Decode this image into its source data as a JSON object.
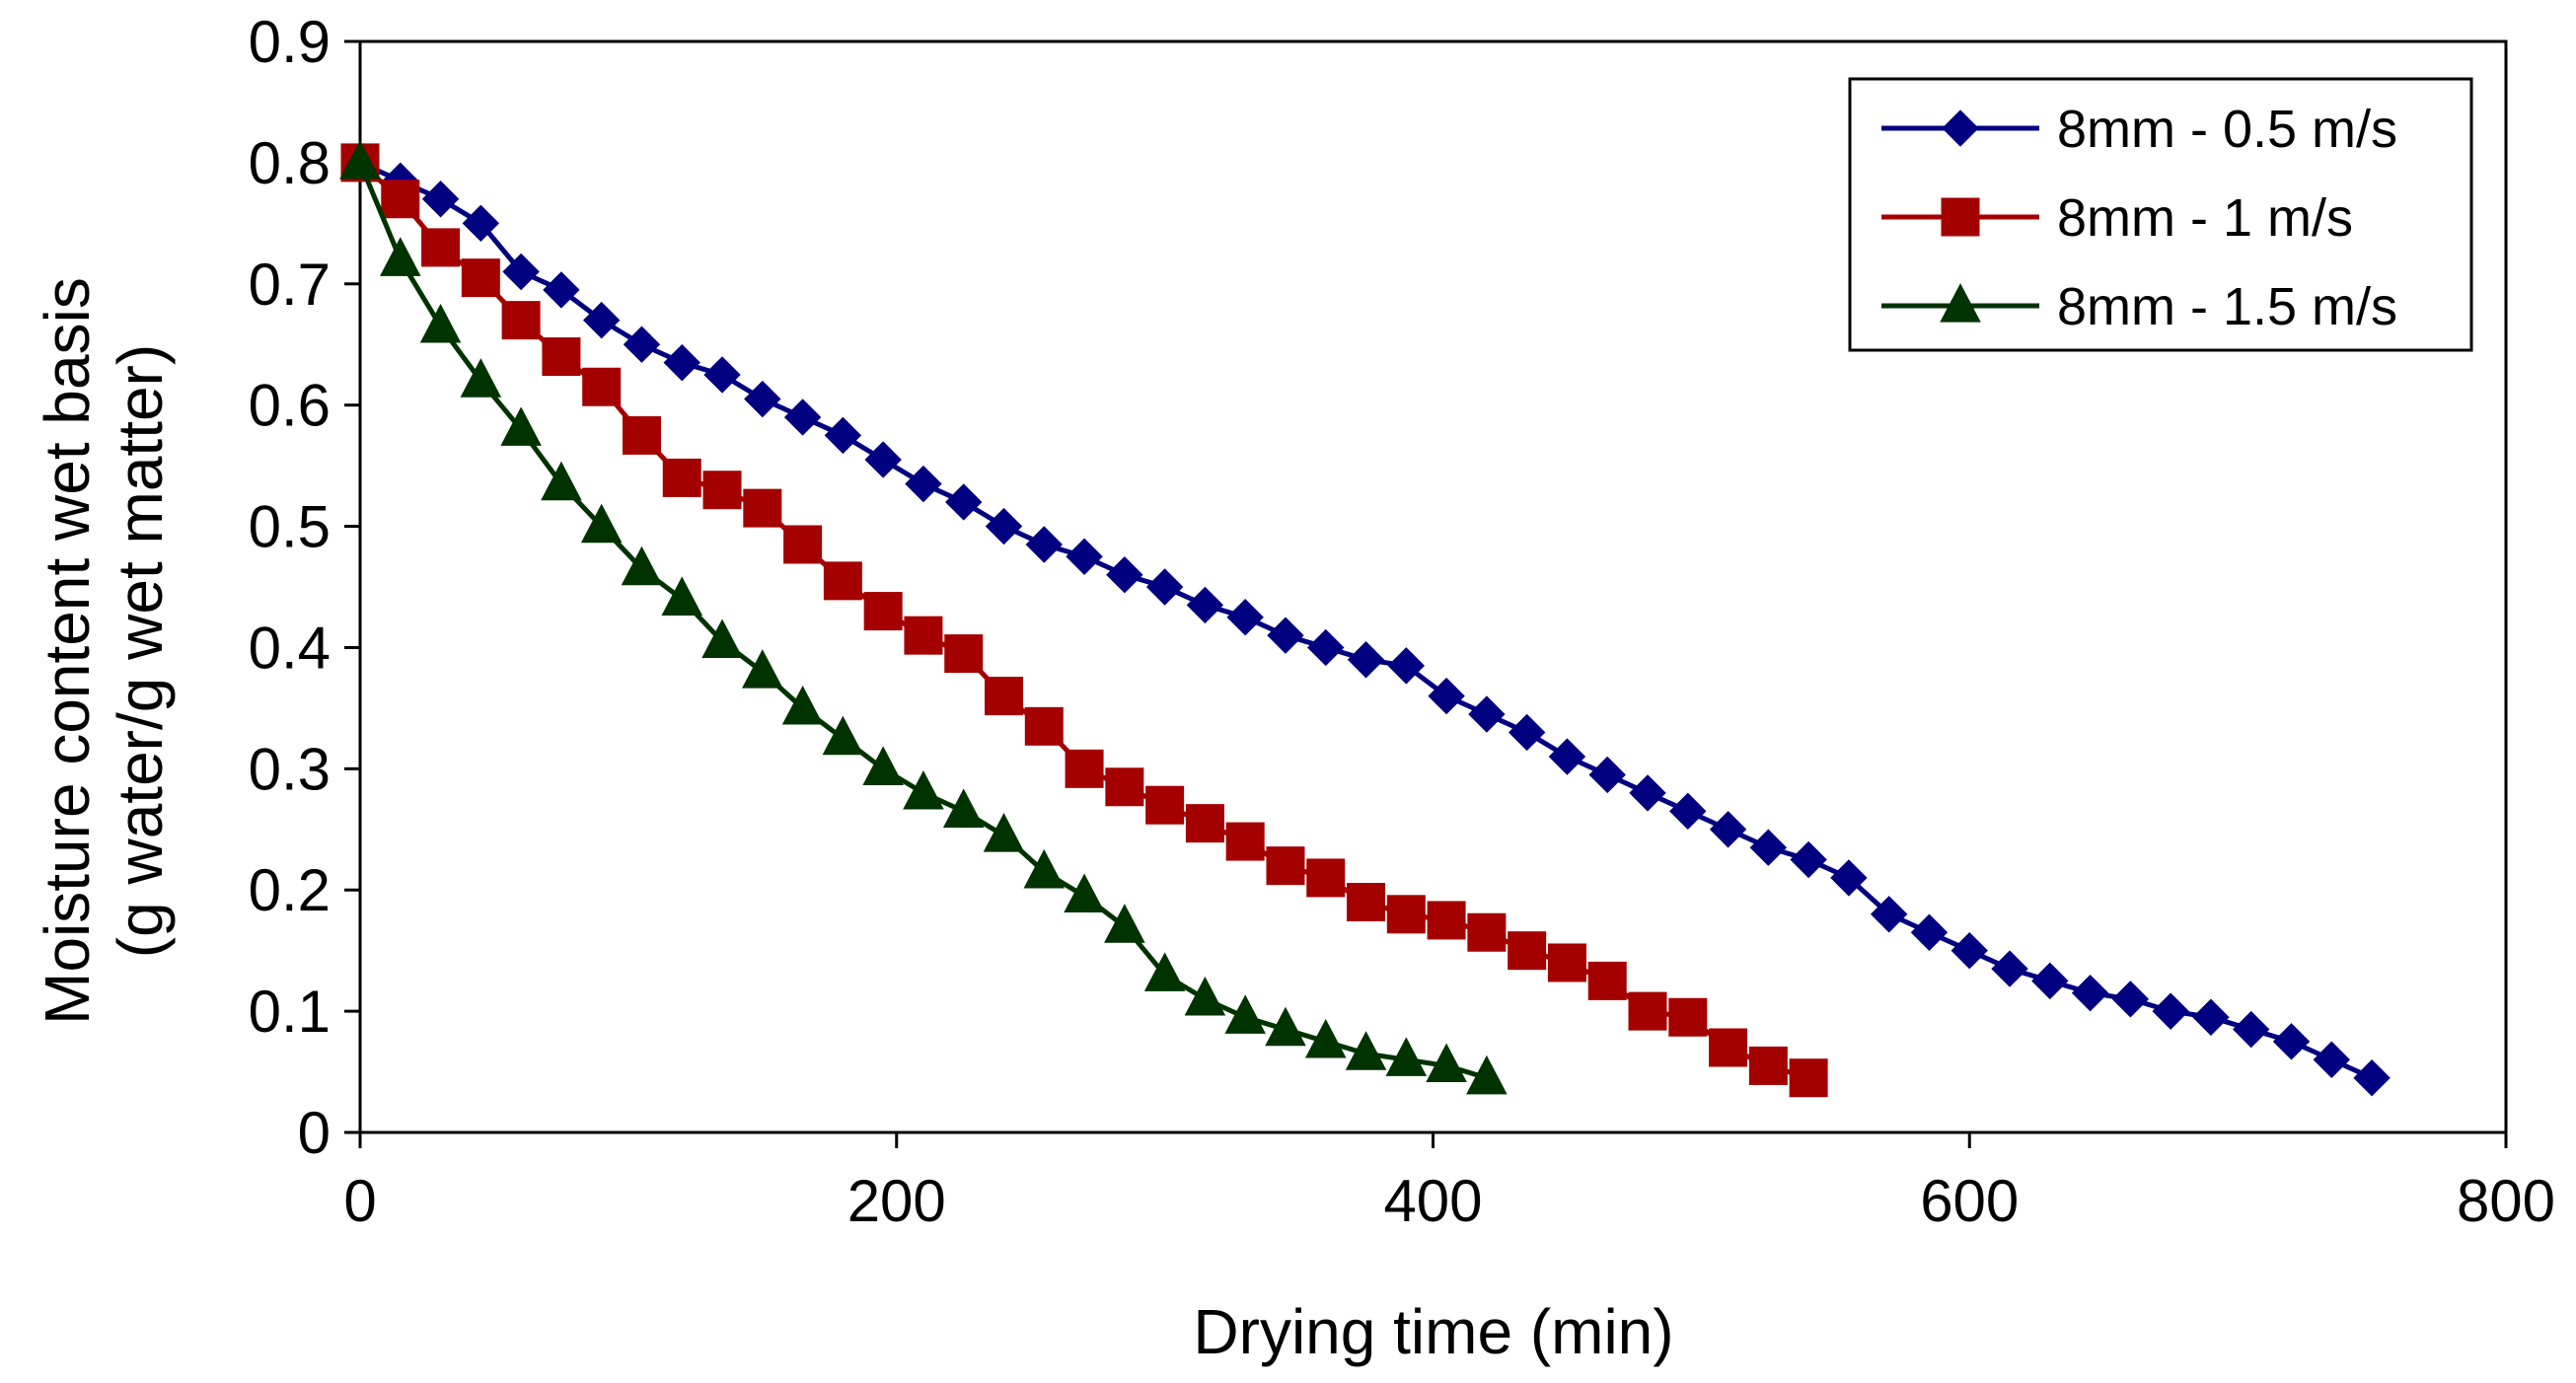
{
  "chart_data": {
    "type": "line",
    "title": "",
    "xlabel": "Drying time (min)",
    "ylabel_line1": "Moisture content wet basis",
    "ylabel_line2": "(g water/g wet matter)",
    "xlim": [
      0,
      800
    ],
    "ylim": [
      0,
      0.9
    ],
    "xticks": [
      0,
      200,
      400,
      600,
      800
    ],
    "xtick_labels": [
      "0",
      "200",
      "400",
      "600",
      "800"
    ],
    "yticks": [
      0,
      0.1,
      0.2,
      0.3,
      0.4,
      0.5,
      0.6,
      0.7,
      0.8,
      0.9
    ],
    "ytick_labels": [
      "0",
      "0.1",
      "0.2",
      "0.3",
      "0.4",
      "0.5",
      "0.6",
      "0.7",
      "0.8",
      "0.9"
    ],
    "grid": false,
    "legend_position": "top-right",
    "series": [
      {
        "name": "8mm - 0.5 m/s",
        "color": "#000080",
        "marker": "diamond",
        "x": [
          0,
          15,
          30,
          45,
          60,
          75,
          90,
          105,
          120,
          135,
          150,
          165,
          180,
          195,
          210,
          225,
          240,
          255,
          270,
          285,
          300,
          315,
          330,
          345,
          360,
          375,
          390,
          405,
          420,
          435,
          450,
          465,
          480,
          495,
          510,
          525,
          540,
          555,
          570,
          585,
          600,
          615,
          630,
          645,
          660,
          675,
          690,
          705,
          720,
          735,
          750
        ],
        "y": [
          0.8,
          0.785,
          0.77,
          0.75,
          0.71,
          0.695,
          0.67,
          0.65,
          0.635,
          0.625,
          0.605,
          0.59,
          0.575,
          0.555,
          0.535,
          0.52,
          0.5,
          0.485,
          0.475,
          0.46,
          0.45,
          0.435,
          0.425,
          0.41,
          0.4,
          0.39,
          0.385,
          0.36,
          0.345,
          0.33,
          0.31,
          0.295,
          0.28,
          0.265,
          0.25,
          0.235,
          0.225,
          0.21,
          0.18,
          0.165,
          0.15,
          0.135,
          0.125,
          0.115,
          0.11,
          0.1,
          0.095,
          0.085,
          0.075,
          0.06,
          0.045
        ]
      },
      {
        "name": "8mm - 1 m/s",
        "color": "#A50000",
        "marker": "square",
        "x": [
          0,
          15,
          30,
          45,
          60,
          75,
          90,
          105,
          120,
          135,
          150,
          165,
          180,
          195,
          210,
          225,
          240,
          255,
          270,
          285,
          300,
          315,
          330,
          345,
          360,
          375,
          390,
          405,
          420,
          435,
          450,
          465,
          480,
          495,
          510,
          525,
          540
        ],
        "y": [
          0.8,
          0.77,
          0.73,
          0.705,
          0.67,
          0.64,
          0.615,
          0.575,
          0.54,
          0.53,
          0.515,
          0.485,
          0.455,
          0.43,
          0.41,
          0.395,
          0.36,
          0.335,
          0.3,
          0.285,
          0.27,
          0.255,
          0.24,
          0.22,
          0.21,
          0.19,
          0.18,
          0.175,
          0.165,
          0.15,
          0.14,
          0.125,
          0.1,
          0.095,
          0.07,
          0.055,
          0.045
        ]
      },
      {
        "name": "8mm - 1.5 m/s",
        "color": "#003300",
        "marker": "triangle",
        "x": [
          0,
          15,
          30,
          45,
          60,
          75,
          90,
          105,
          120,
          135,
          150,
          165,
          180,
          195,
          210,
          225,
          240,
          255,
          270,
          285,
          300,
          315,
          330,
          345,
          360,
          375,
          390,
          405,
          420
        ],
        "y": [
          0.8,
          0.72,
          0.665,
          0.62,
          0.58,
          0.535,
          0.5,
          0.465,
          0.44,
          0.405,
          0.38,
          0.35,
          0.325,
          0.3,
          0.28,
          0.265,
          0.245,
          0.215,
          0.195,
          0.17,
          0.13,
          0.11,
          0.095,
          0.085,
          0.075,
          0.065,
          0.06,
          0.055,
          0.045
        ]
      }
    ]
  }
}
